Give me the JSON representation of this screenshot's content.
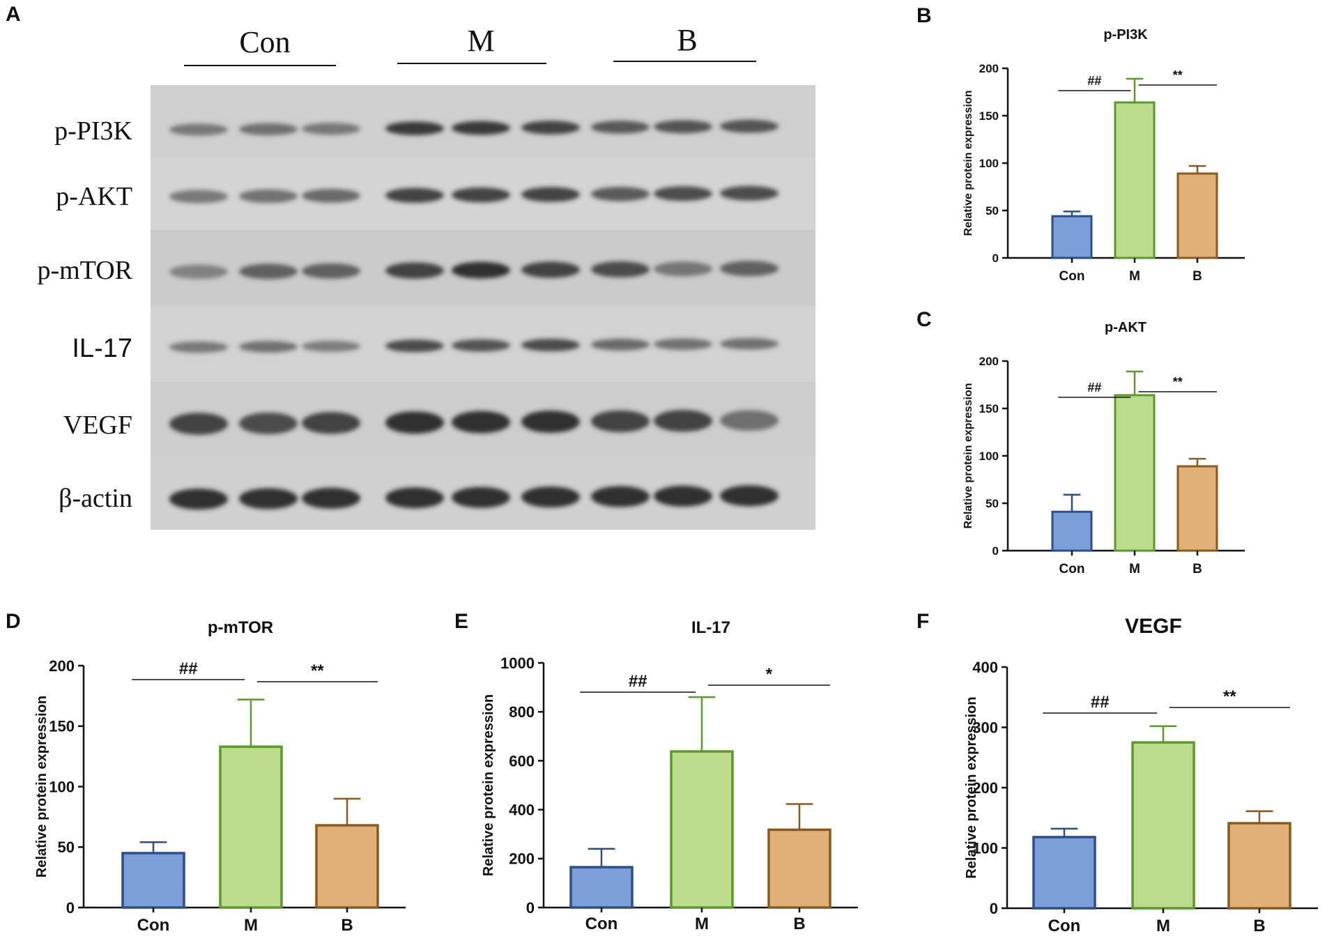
{
  "panels": {
    "a": "A",
    "b": "B",
    "c": "C",
    "d": "D",
    "e": "E",
    "f": "F"
  },
  "blot": {
    "groups": [
      "Con",
      "M",
      "B"
    ],
    "rows": [
      "p-PI3K",
      "p-AKT",
      "p-mTOR",
      "IL-17",
      "VEGF",
      "β-actin"
    ]
  },
  "colors": {
    "con_fill": "#7b9fd6",
    "con_stroke": "#2a4f8f",
    "m_fill": "#bcdc8c",
    "m_stroke": "#5a9a2a",
    "b_fill": "#e0b078",
    "b_stroke": "#8a5a1a"
  },
  "chart_data": [
    {
      "type": "bar",
      "title": "p-PI3K",
      "categories": [
        "Con",
        "M",
        "B"
      ],
      "values": [
        44,
        164,
        89
      ],
      "errors": [
        5,
        25,
        8
      ],
      "ylabel": "Relative protein expression",
      "ylim": [
        0,
        200
      ],
      "yticks": [
        "0",
        "50",
        "100",
        "150",
        "200"
      ],
      "sig": [
        {
          "label": "##"
        },
        {
          "label": "**"
        }
      ]
    },
    {
      "type": "bar",
      "title": "p-AKT",
      "categories": [
        "Con",
        "M",
        "B"
      ],
      "values": [
        41,
        164,
        89
      ],
      "errors": [
        18,
        25,
        8
      ],
      "ylabel": "Relative protein expression",
      "ylim": [
        0,
        200
      ],
      "yticks": [
        "0",
        "50",
        "100",
        "150",
        "200"
      ],
      "sig": [
        {
          "label": "##"
        },
        {
          "label": "**"
        }
      ]
    },
    {
      "type": "bar",
      "title": "p-mTOR",
      "categories": [
        "Con",
        "M",
        "B"
      ],
      "values": [
        45,
        133,
        68
      ],
      "errors": [
        9,
        39,
        22
      ],
      "ylabel": "Relative protein expression",
      "ylim": [
        0,
        200
      ],
      "yticks": [
        "0",
        "50",
        "100",
        "150",
        "200"
      ],
      "sig": [
        {
          "label": "##"
        },
        {
          "label": "**"
        }
      ]
    },
    {
      "type": "bar",
      "title": "IL-17",
      "categories": [
        "Con",
        "M",
        "B"
      ],
      "values": [
        165,
        638,
        318
      ],
      "errors": [
        75,
        222,
        105
      ],
      "ylabel": "Relative protein expression",
      "ylim": [
        0,
        1000
      ],
      "yticks": [
        "0",
        "200",
        "400",
        "600",
        "800",
        "1000"
      ],
      "sig": [
        {
          "label": "##"
        },
        {
          "label": "*"
        }
      ]
    },
    {
      "type": "bar",
      "title": "VEGF",
      "categories": [
        "Con",
        "M",
        "B"
      ],
      "values": [
        118,
        275,
        141
      ],
      "errors": [
        14,
        27,
        20
      ],
      "ylabel": "Relative protein expression",
      "ylim": [
        0,
        400
      ],
      "yticks": [
        "0",
        "100",
        "200",
        "300",
        "400"
      ],
      "sig": [
        {
          "label": "##"
        },
        {
          "label": "**"
        }
      ]
    }
  ]
}
